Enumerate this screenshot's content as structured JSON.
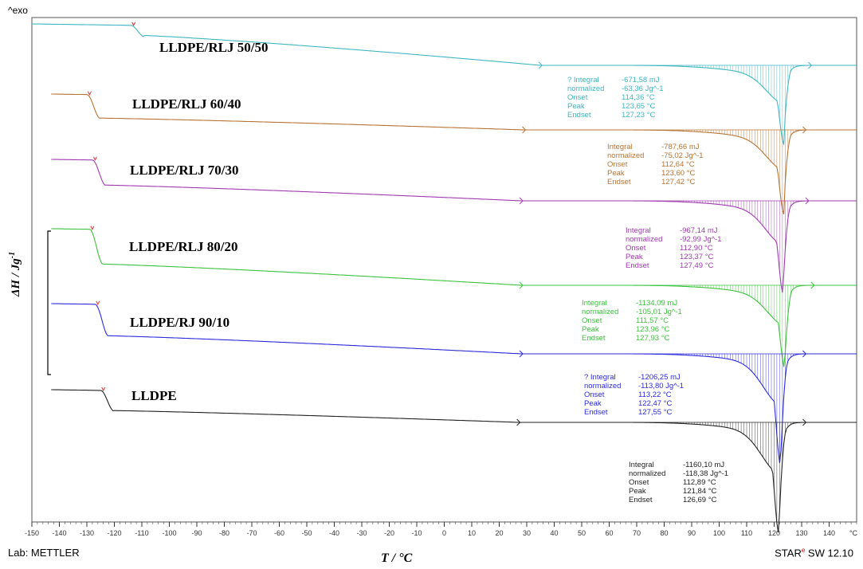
{
  "header": {
    "exo_label": "^exo"
  },
  "footer": {
    "lab": "Lab: METTLER",
    "software_brand": "STAR",
    "software_mark": "e",
    "software_version": " SW 12.10"
  },
  "chart_data": {
    "type": "line",
    "xlabel": "T / °C",
    "ylabel": "ΔH / Jg",
    "ylabel_sup": "-1",
    "xlim": [
      -150,
      150
    ],
    "x_ticks": [
      -150,
      -140,
      -130,
      -120,
      -110,
      -100,
      -90,
      -80,
      -70,
      -60,
      -50,
      -40,
      -30,
      -20,
      -10,
      0,
      10,
      20,
      30,
      40,
      50,
      60,
      70,
      80,
      90,
      100,
      110,
      120,
      130,
      140
    ],
    "x_unit": "°C",
    "series": [
      {
        "name": "LLDPE/RLJ 50/50",
        "color": "#3fb6c0",
        "annotation": [
          {
            "k": "? Integral",
            "v": "-671,58 mJ"
          },
          {
            "k": "  normalized",
            "v": "-63,36 Jg^-1"
          },
          {
            "k": "Onset",
            "v": "114,36 °C"
          },
          {
            "k": "Peak",
            "v": "123,65 °C"
          },
          {
            "k": "Endset",
            "v": "127,23 °C"
          }
        ]
      },
      {
        "name": "LLDPE/RLJ 60/40",
        "color": "#b87333",
        "annotation": [
          {
            "k": "Integral",
            "v": "-787,66 mJ"
          },
          {
            "k": "  normalized",
            "v": "-75,02 Jg^-1"
          },
          {
            "k": "Onset",
            "v": "112,64 °C"
          },
          {
            "k": "Peak",
            "v": "123,60 °C"
          },
          {
            "k": "Endset",
            "v": "127,42 °C"
          }
        ]
      },
      {
        "name": "LLDPE/RLJ 70/30",
        "color": "#a03ab0",
        "annotation": [
          {
            "k": "Integral",
            "v": "-967,14 mJ"
          },
          {
            "k": "  normalized",
            "v": "-92,99 Jg^-1"
          },
          {
            "k": "Onset",
            "v": "112,90 °C"
          },
          {
            "k": "Peak",
            "v": "123,37 °C"
          },
          {
            "k": "Endset",
            "v": "127,49 °C"
          }
        ]
      },
      {
        "name": "LLDPE/RLJ 80/20",
        "color": "#3cc23c",
        "annotation": [
          {
            "k": "Integral",
            "v": "-1134,09 mJ"
          },
          {
            "k": "  normalized",
            "v": "-105,01 Jg^-1"
          },
          {
            "k": "Onset",
            "v": "111,57 °C"
          },
          {
            "k": "Peak",
            "v": "123,96 °C"
          },
          {
            "k": "Endset",
            "v": "127,93 °C"
          }
        ]
      },
      {
        "name": "LLDPE/RJ 90/10",
        "color": "#2b2bdd",
        "annotation": [
          {
            "k": "? Integral",
            "v": "-1206,25 mJ"
          },
          {
            "k": "  normalized",
            "v": "-113,80 Jg^-1"
          },
          {
            "k": "Onset",
            "v": "113,22 °C"
          },
          {
            "k": "Peak",
            "v": "122,47 °C"
          },
          {
            "k": "Endset",
            "v": "127,55 °C"
          }
        ]
      },
      {
        "name": "LLDPE",
        "color": "#222222",
        "annotation": [
          {
            "k": "Integral",
            "v": "-1160,10 mJ"
          },
          {
            "k": "  normalized",
            "v": "-118,38 Jg^-1"
          },
          {
            "k": "Onset",
            "v": "112,89 °C"
          },
          {
            "k": "Peak",
            "v": "121,84 °C"
          },
          {
            "k": "Endset",
            "v": "126,69 °C"
          }
        ]
      }
    ]
  }
}
